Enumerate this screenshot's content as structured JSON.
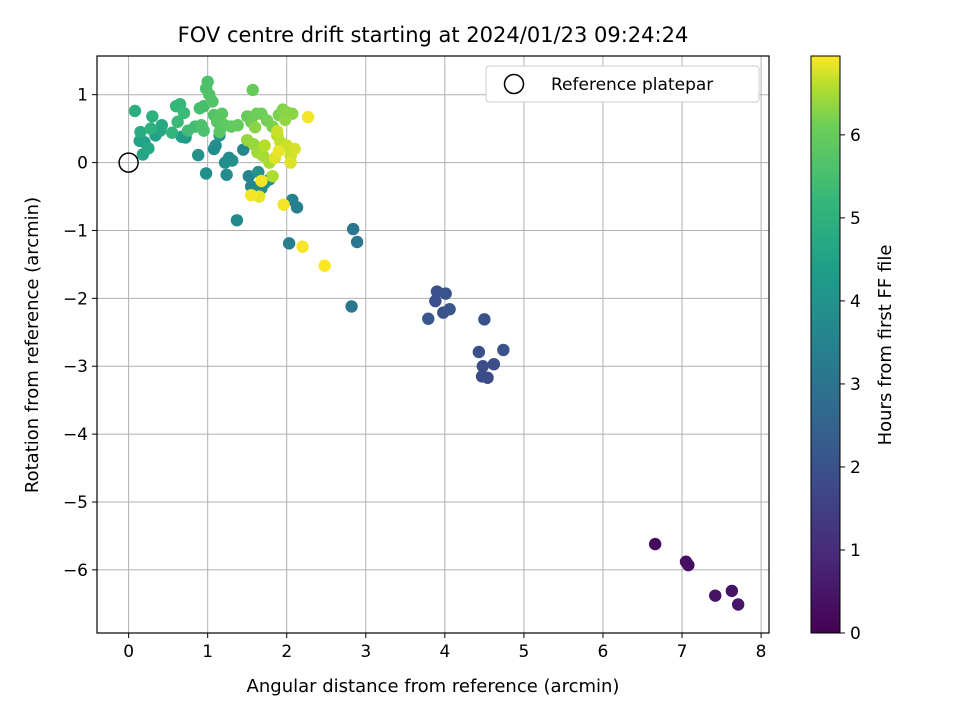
{
  "chart_data": {
    "type": "scatter",
    "title": "FOV centre drift starting at 2024/01/23 09:24:24",
    "xlabel": "Angular distance from reference (arcmin)",
    "ylabel": "Rotation from reference (arcmin)",
    "xlim": [
      -0.4,
      8.1
    ],
    "ylim": [
      -6.93,
      1.57
    ],
    "xticks": [
      "0",
      "1",
      "2",
      "3",
      "4",
      "5",
      "6",
      "7",
      "8"
    ],
    "yticks": [
      "−6",
      "−5",
      "−4",
      "−3",
      "−2",
      "−1",
      "0",
      "1"
    ],
    "grid": true,
    "legend": {
      "position": "top-right",
      "entries": [
        "Reference platepar"
      ]
    },
    "reference_point": {
      "x": 0,
      "y": 0,
      "label": "Reference platepar"
    },
    "colorbar": {
      "label": "Hours from first FF file",
      "range": [
        0,
        6.95
      ],
      "ticks": [
        "0",
        "1",
        "2",
        "3",
        "4",
        "5",
        "6"
      ],
      "colormap": "viridis"
    },
    "points": [
      {
        "x": 6.66,
        "y": -5.62,
        "h": 0.25
      },
      {
        "x": 7.05,
        "y": -5.88,
        "h": 0.3
      },
      {
        "x": 7.08,
        "y": -5.93,
        "h": 0.35
      },
      {
        "x": 7.42,
        "y": -6.38,
        "h": 0.4
      },
      {
        "x": 7.63,
        "y": -6.31,
        "h": 0.45
      },
      {
        "x": 7.71,
        "y": -6.51,
        "h": 0.5
      },
      {
        "x": 3.9,
        "y": -1.9,
        "h": 1.9
      },
      {
        "x": 3.88,
        "y": -2.04,
        "h": 1.95
      },
      {
        "x": 3.98,
        "y": -2.21,
        "h": 2.0
      },
      {
        "x": 4.01,
        "y": -1.93,
        "h": 2.05
      },
      {
        "x": 4.06,
        "y": -2.16,
        "h": 2.1
      },
      {
        "x": 3.79,
        "y": -2.3,
        "h": 2.15
      },
      {
        "x": 4.5,
        "y": -2.31,
        "h": 2.0
      },
      {
        "x": 4.43,
        "y": -2.79,
        "h": 1.95
      },
      {
        "x": 4.74,
        "y": -2.76,
        "h": 2.0
      },
      {
        "x": 4.62,
        "y": -2.97,
        "h": 1.9
      },
      {
        "x": 4.48,
        "y": -3.0,
        "h": 1.85
      },
      {
        "x": 4.47,
        "y": -3.15,
        "h": 1.85
      },
      {
        "x": 4.54,
        "y": -3.17,
        "h": 1.8
      },
      {
        "x": 2.84,
        "y": -0.98,
        "h": 3.1
      },
      {
        "x": 2.89,
        "y": -1.17,
        "h": 3.05
      },
      {
        "x": 2.82,
        "y": -2.12,
        "h": 3.1
      },
      {
        "x": 2.03,
        "y": -1.19,
        "h": 3.3
      },
      {
        "x": 2.07,
        "y": -0.55,
        "h": 3.4
      },
      {
        "x": 2.13,
        "y": -0.66,
        "h": 3.4
      },
      {
        "x": 1.37,
        "y": -0.85,
        "h": 3.7
      },
      {
        "x": 1.45,
        "y": 0.19,
        "h": 3.6
      },
      {
        "x": 1.52,
        "y": -0.2,
        "h": 3.5
      },
      {
        "x": 1.55,
        "y": -0.35,
        "h": 3.6
      },
      {
        "x": 1.6,
        "y": -0.45,
        "h": 3.7
      },
      {
        "x": 1.68,
        "y": -0.38,
        "h": 3.8
      },
      {
        "x": 1.72,
        "y": -0.3,
        "h": 3.9
      },
      {
        "x": 1.78,
        "y": -0.25,
        "h": 3.95
      },
      {
        "x": 1.64,
        "y": -0.14,
        "h": 4.0
      },
      {
        "x": 1.22,
        "y": 0.0,
        "h": 3.9
      },
      {
        "x": 1.27,
        "y": 0.07,
        "h": 3.85
      },
      {
        "x": 1.24,
        "y": -0.18,
        "h": 3.8
      },
      {
        "x": 1.31,
        "y": 0.03,
        "h": 3.9
      },
      {
        "x": 1.08,
        "y": 0.2,
        "h": 3.8
      },
      {
        "x": 1.1,
        "y": 0.25,
        "h": 3.85
      },
      {
        "x": 0.98,
        "y": -0.16,
        "h": 3.9
      },
      {
        "x": 0.88,
        "y": 0.11,
        "h": 4.0
      },
      {
        "x": 1.15,
        "y": 0.4,
        "h": 4.1
      },
      {
        "x": 0.72,
        "y": 0.37,
        "h": 4.2
      },
      {
        "x": 0.67,
        "y": 0.38,
        "h": 4.3
      },
      {
        "x": 0.2,
        "y": 0.3,
        "h": 4.4
      },
      {
        "x": 0.14,
        "y": 0.32,
        "h": 4.5
      },
      {
        "x": 0.18,
        "y": 0.12,
        "h": 4.6
      },
      {
        "x": 0.25,
        "y": 0.21,
        "h": 4.7
      },
      {
        "x": 0.34,
        "y": 0.4,
        "h": 4.5
      },
      {
        "x": 0.4,
        "y": 0.47,
        "h": 4.6
      },
      {
        "x": 0.42,
        "y": 0.55,
        "h": 4.7
      },
      {
        "x": 0.15,
        "y": 0.45,
        "h": 4.8
      },
      {
        "x": 0.08,
        "y": 0.76,
        "h": 4.9
      },
      {
        "x": 0.3,
        "y": 0.68,
        "h": 5.0
      },
      {
        "x": 0.28,
        "y": 0.5,
        "h": 5.0
      },
      {
        "x": 0.55,
        "y": 0.44,
        "h": 5.1
      },
      {
        "x": 0.6,
        "y": 0.83,
        "h": 5.2
      },
      {
        "x": 0.65,
        "y": 0.86,
        "h": 5.2
      },
      {
        "x": 0.7,
        "y": 0.73,
        "h": 5.3
      },
      {
        "x": 0.62,
        "y": 0.6,
        "h": 5.3
      },
      {
        "x": 0.75,
        "y": 0.47,
        "h": 5.4
      },
      {
        "x": 0.84,
        "y": 0.53,
        "h": 5.4
      },
      {
        "x": 0.9,
        "y": 0.8,
        "h": 5.5
      },
      {
        "x": 0.95,
        "y": 0.83,
        "h": 5.5
      },
      {
        "x": 1.0,
        "y": 1.19,
        "h": 5.6
      },
      {
        "x": 0.98,
        "y": 1.09,
        "h": 5.6
      },
      {
        "x": 1.02,
        "y": 1.0,
        "h": 5.7
      },
      {
        "x": 1.06,
        "y": 0.9,
        "h": 5.7
      },
      {
        "x": 1.08,
        "y": 0.7,
        "h": 5.7
      },
      {
        "x": 1.12,
        "y": 0.6,
        "h": 5.8
      },
      {
        "x": 0.92,
        "y": 0.55,
        "h": 5.6
      },
      {
        "x": 0.95,
        "y": 0.47,
        "h": 5.6
      },
      {
        "x": 1.18,
        "y": 0.72,
        "h": 5.8
      },
      {
        "x": 1.22,
        "y": 0.55,
        "h": 5.9
      },
      {
        "x": 1.3,
        "y": 0.53,
        "h": 5.9
      },
      {
        "x": 1.38,
        "y": 0.55,
        "h": 5.95
      },
      {
        "x": 1.15,
        "y": 0.45,
        "h": 5.8
      },
      {
        "x": 1.57,
        "y": 1.07,
        "h": 6.0
      },
      {
        "x": 1.5,
        "y": 0.68,
        "h": 6.0
      },
      {
        "x": 1.55,
        "y": 0.6,
        "h": 6.05
      },
      {
        "x": 1.62,
        "y": 0.72,
        "h": 6.1
      },
      {
        "x": 1.68,
        "y": 0.72,
        "h": 6.1
      },
      {
        "x": 1.75,
        "y": 0.62,
        "h": 6.15
      },
      {
        "x": 1.82,
        "y": 0.53,
        "h": 6.2
      },
      {
        "x": 1.9,
        "y": 0.7,
        "h": 6.2
      },
      {
        "x": 1.95,
        "y": 0.78,
        "h": 6.25
      },
      {
        "x": 2.0,
        "y": 0.74,
        "h": 6.3
      },
      {
        "x": 2.07,
        "y": 0.72,
        "h": 6.3
      },
      {
        "x": 1.98,
        "y": 0.63,
        "h": 6.35
      },
      {
        "x": 1.5,
        "y": 0.33,
        "h": 6.4
      },
      {
        "x": 1.58,
        "y": 0.27,
        "h": 6.4
      },
      {
        "x": 1.63,
        "y": 0.15,
        "h": 6.45
      },
      {
        "x": 1.7,
        "y": 0.1,
        "h": 6.5
      },
      {
        "x": 1.78,
        "y": 0.0,
        "h": 6.5
      },
      {
        "x": 1.82,
        "y": -0.2,
        "h": 6.55
      },
      {
        "x": 1.72,
        "y": 0.25,
        "h": 6.6
      },
      {
        "x": 1.88,
        "y": 0.4,
        "h": 6.6
      },
      {
        "x": 1.92,
        "y": 0.3,
        "h": 6.65
      },
      {
        "x": 2.0,
        "y": 0.25,
        "h": 6.7
      },
      {
        "x": 2.05,
        "y": 0.1,
        "h": 6.7
      },
      {
        "x": 2.1,
        "y": 0.2,
        "h": 6.75
      },
      {
        "x": 2.05,
        "y": 0.0,
        "h": 6.8
      },
      {
        "x": 1.85,
        "y": 0.07,
        "h": 6.8
      },
      {
        "x": 1.9,
        "y": 0.17,
        "h": 6.85
      },
      {
        "x": 1.65,
        "y": -0.5,
        "h": 6.85
      },
      {
        "x": 1.55,
        "y": -0.48,
        "h": 6.9
      },
      {
        "x": 1.68,
        "y": -0.27,
        "h": 6.9
      },
      {
        "x": 1.96,
        "y": -0.62,
        "h": 6.9
      },
      {
        "x": 2.27,
        "y": 0.67,
        "h": 6.9
      },
      {
        "x": 2.2,
        "y": -1.24,
        "h": 6.92
      },
      {
        "x": 2.48,
        "y": -1.52,
        "h": 6.95
      },
      {
        "x": 1.6,
        "y": 0.52,
        "h": 6.3
      },
      {
        "x": 1.88,
        "y": 0.46,
        "h": 6.7
      }
    ]
  }
}
